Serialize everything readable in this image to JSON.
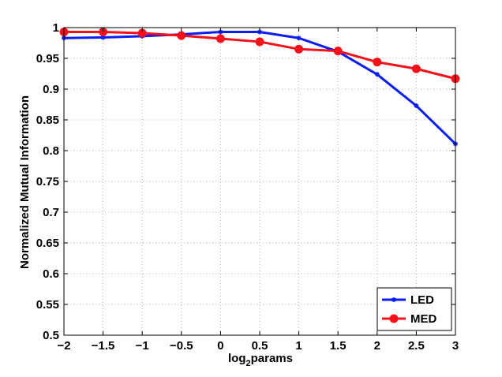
{
  "chart_data": {
    "type": "line",
    "title": "",
    "xlabel_main": "log",
    "xlabel_sub": "2",
    "xlabel_tail": "params",
    "ylabel": "Normalized Mutual Information",
    "xlim": [
      -2,
      3
    ],
    "ylim": [
      0.5,
      1.0
    ],
    "grid": true,
    "legend_position": "bottom-right",
    "x_ticks": [
      -2,
      -1.5,
      -1,
      -0.5,
      0,
      0.5,
      1,
      1.5,
      2,
      2.5,
      3
    ],
    "x_tick_labels": [
      "−2",
      "−1.5",
      "−1",
      "−0.5",
      "0",
      "0.5",
      "1",
      "1.5",
      "2",
      "2.5",
      "3"
    ],
    "y_ticks": [
      0.5,
      0.55,
      0.6,
      0.65,
      0.7,
      0.75,
      0.8,
      0.85,
      0.9,
      0.95,
      1.0
    ],
    "y_tick_labels": [
      "0.5",
      "0.55",
      "0.6",
      "0.65",
      "0.7",
      "0.75",
      "0.8",
      "0.85",
      "0.9",
      "0.95",
      "1"
    ],
    "x": [
      -2,
      -1.5,
      -1,
      -0.5,
      0,
      0.5,
      1,
      1.5,
      2,
      2.5,
      3
    ],
    "series": [
      {
        "name": "LED",
        "color": "#0a1df5",
        "marker": "asterisk",
        "values": [
          0.983,
          0.984,
          0.986,
          0.989,
          0.993,
          0.993,
          0.983,
          0.961,
          0.924,
          0.873,
          0.811
        ]
      },
      {
        "name": "MED",
        "color": "#f5101a",
        "marker": "circle",
        "values": [
          0.993,
          0.993,
          0.991,
          0.987,
          0.982,
          0.977,
          0.965,
          0.962,
          0.944,
          0.933,
          0.917
        ]
      }
    ]
  }
}
